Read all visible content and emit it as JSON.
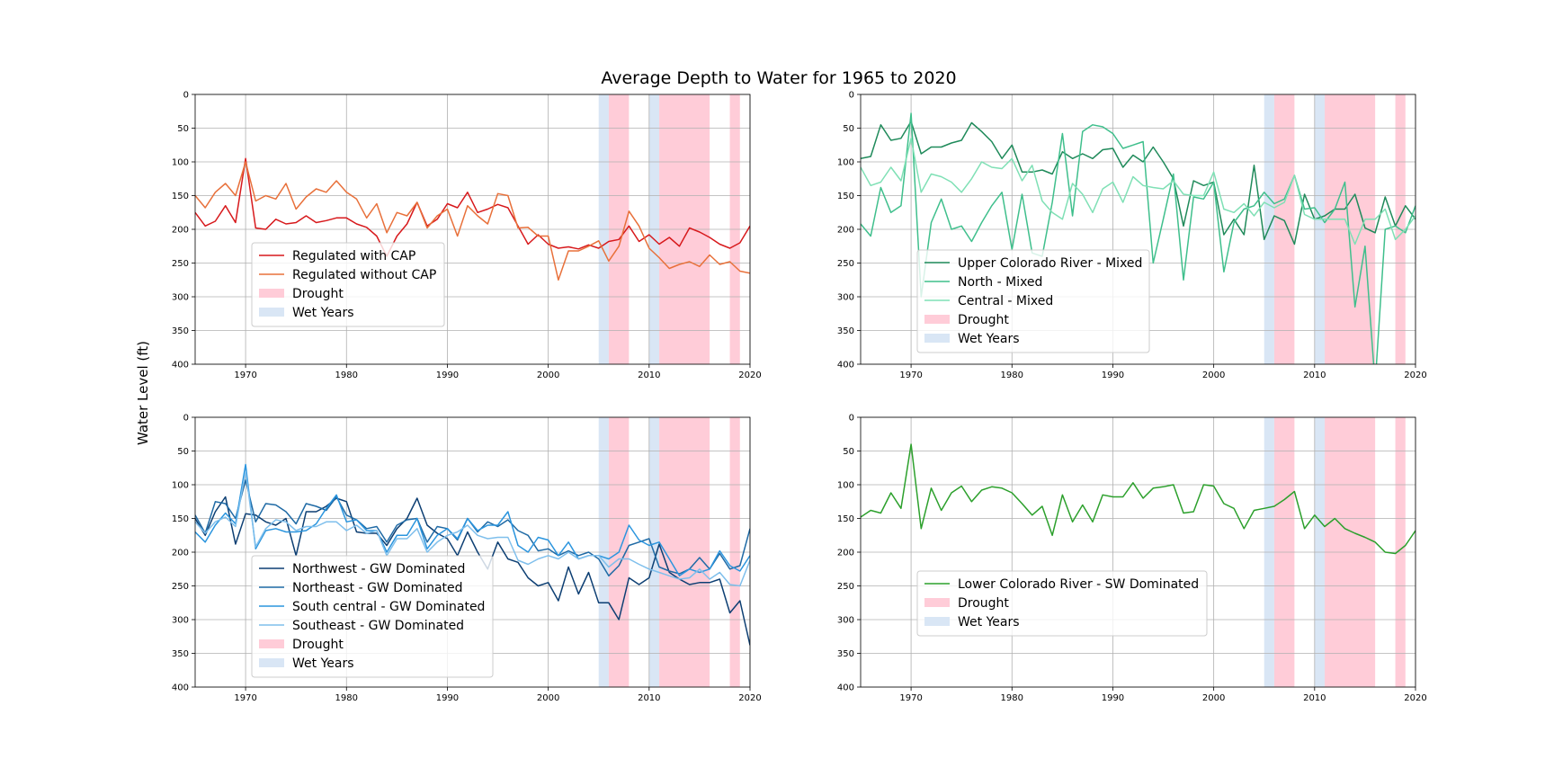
{
  "figure": {
    "title": "Average Depth to Water for 1965 to 2020",
    "ylabel": "Water Level (ft)"
  },
  "colors": {
    "drought": "#ffccd8",
    "wet": "#d9e6f5",
    "grid": "#b0b0b0"
  },
  "chart_data": [
    {
      "type": "line",
      "xlim": [
        1965,
        2020
      ],
      "ylim": [
        0,
        400
      ],
      "y_inverted": true,
      "grid": true,
      "xticks": [
        1970,
        1980,
        1990,
        2000,
        2010,
        2020
      ],
      "yticks": [
        0,
        50,
        100,
        150,
        200,
        250,
        300,
        350,
        400
      ],
      "legend_position": "center-left",
      "drought_spans": [
        [
          2006,
          2008
        ],
        [
          2011,
          2016
        ],
        [
          2018,
          2019
        ]
      ],
      "wet_spans": [
        [
          2005,
          2006
        ],
        [
          2010,
          2011
        ]
      ],
      "drought_label": "Drought",
      "wet_label": "Wet Years",
      "x": [
        1965,
        1966,
        1967,
        1968,
        1969,
        1970,
        1971,
        1972,
        1973,
        1974,
        1975,
        1976,
        1977,
        1978,
        1979,
        1980,
        1981,
        1982,
        1983,
        1984,
        1985,
        1986,
        1987,
        1988,
        1989,
        1990,
        1991,
        1992,
        1993,
        1994,
        1995,
        1996,
        1997,
        1998,
        1999,
        2000,
        2001,
        2002,
        2003,
        2004,
        2005,
        2006,
        2007,
        2008,
        2009,
        2010,
        2011,
        2012,
        2013,
        2014,
        2015,
        2016,
        2017,
        2018,
        2019,
        2020
      ],
      "series": [
        {
          "name": "Regulated with CAP",
          "color": "#d7191c",
          "values": [
            175,
            195,
            188,
            165,
            190,
            95,
            198,
            200,
            185,
            192,
            190,
            180,
            190,
            187,
            183,
            183,
            192,
            197,
            210,
            240,
            210,
            192,
            160,
            195,
            185,
            162,
            168,
            145,
            175,
            170,
            163,
            168,
            195,
            222,
            208,
            222,
            228,
            226,
            229,
            223,
            228,
            218,
            215,
            195,
            218,
            208,
            222,
            212,
            225,
            198,
            204,
            212,
            222,
            228,
            220,
            195
          ]
        },
        {
          "name": "Regulated without CAP",
          "color": "#e8703a",
          "values": [
            150,
            168,
            145,
            132,
            150,
            100,
            158,
            150,
            155,
            132,
            170,
            152,
            140,
            145,
            128,
            145,
            155,
            183,
            162,
            205,
            175,
            180,
            160,
            198,
            180,
            170,
            210,
            165,
            180,
            192,
            147,
            150,
            198,
            197,
            210,
            210,
            275,
            232,
            232,
            225,
            217,
            247,
            225,
            173,
            195,
            228,
            242,
            258,
            252,
            248,
            255,
            238,
            252,
            248,
            262,
            265
          ]
        }
      ]
    },
    {
      "type": "line",
      "xlim": [
        1965,
        2020
      ],
      "ylim": [
        0,
        400
      ],
      "y_inverted": true,
      "grid": true,
      "xticks": [
        1970,
        1980,
        1990,
        2000,
        2010,
        2020
      ],
      "yticks": [
        0,
        50,
        100,
        150,
        200,
        250,
        300,
        350,
        400
      ],
      "legend_position": "center-left",
      "drought_spans": [
        [
          2006,
          2008
        ],
        [
          2011,
          2016
        ],
        [
          2018,
          2019
        ]
      ],
      "wet_spans": [
        [
          2005,
          2006
        ],
        [
          2010,
          2011
        ]
      ],
      "drought_label": "Drought",
      "wet_label": "Wet Years",
      "x": [
        1965,
        1966,
        1967,
        1968,
        1969,
        1970,
        1971,
        1972,
        1973,
        1974,
        1975,
        1976,
        1977,
        1978,
        1979,
        1980,
        1981,
        1982,
        1983,
        1984,
        1985,
        1986,
        1987,
        1988,
        1989,
        1990,
        1991,
        1992,
        1993,
        1994,
        1995,
        1996,
        1997,
        1998,
        1999,
        2000,
        2001,
        2002,
        2003,
        2004,
        2005,
        2006,
        2007,
        2008,
        2009,
        2010,
        2011,
        2012,
        2013,
        2014,
        2015,
        2016,
        2017,
        2018,
        2019,
        2020
      ],
      "series": [
        {
          "name": "Upper Colorado River - Mixed",
          "color": "#1f8a5a",
          "values": [
            95,
            92,
            45,
            68,
            65,
            40,
            88,
            78,
            78,
            72,
            68,
            42,
            55,
            70,
            95,
            75,
            115,
            115,
            112,
            118,
            85,
            95,
            88,
            95,
            82,
            80,
            108,
            90,
            100,
            78,
            100,
            125,
            195,
            128,
            135,
            130,
            208,
            185,
            208,
            105,
            215,
            180,
            187,
            222,
            148,
            185,
            180,
            170,
            170,
            148,
            198,
            205,
            152,
            195,
            165,
            185
          ]
        },
        {
          "name": "North - Mixed",
          "color": "#3fbf8c",
          "values": [
            192,
            210,
            138,
            175,
            165,
            28,
            300,
            190,
            155,
            200,
            195,
            218,
            190,
            165,
            145,
            230,
            148,
            235,
            240,
            160,
            58,
            180,
            55,
            45,
            48,
            58,
            80,
            75,
            70,
            250,
            185,
            118,
            275,
            152,
            155,
            130,
            263,
            190,
            170,
            165,
            145,
            162,
            155,
            120,
            170,
            168,
            190,
            170,
            130,
            315,
            225,
            430,
            200,
            195,
            205,
            165
          ]
        },
        {
          "name": "Central - Mixed",
          "color": "#7fe0b5",
          "values": [
            108,
            135,
            130,
            108,
            128,
            65,
            145,
            118,
            122,
            130,
            145,
            125,
            100,
            108,
            110,
            95,
            128,
            105,
            158,
            175,
            185,
            132,
            148,
            175,
            140,
            130,
            160,
            122,
            135,
            138,
            140,
            128,
            148,
            150,
            150,
            115,
            170,
            175,
            162,
            180,
            160,
            168,
            160,
            120,
            178,
            185,
            185,
            185,
            185,
            222,
            185,
            185,
            170,
            215,
            200,
            180
          ]
        }
      ]
    },
    {
      "type": "line",
      "xlim": [
        1965,
        2020
      ],
      "ylim": [
        0,
        400
      ],
      "y_inverted": true,
      "grid": true,
      "xticks": [
        1970,
        1980,
        1990,
        2000,
        2010,
        2020
      ],
      "yticks": [
        0,
        50,
        100,
        150,
        200,
        250,
        300,
        350,
        400
      ],
      "legend_position": "center-left",
      "drought_spans": [
        [
          2006,
          2008
        ],
        [
          2011,
          2016
        ],
        [
          2018,
          2019
        ]
      ],
      "wet_spans": [
        [
          2005,
          2006
        ],
        [
          2010,
          2011
        ]
      ],
      "drought_label": "Drought",
      "wet_label": "Wet Years",
      "x": [
        1965,
        1966,
        1967,
        1968,
        1969,
        1970,
        1971,
        1972,
        1973,
        1974,
        1975,
        1976,
        1977,
        1978,
        1979,
        1980,
        1981,
        1982,
        1983,
        1984,
        1985,
        1986,
        1987,
        1988,
        1989,
        1990,
        1991,
        1992,
        1993,
        1994,
        1995,
        1996,
        1997,
        1998,
        1999,
        2000,
        2001,
        2002,
        2003,
        2004,
        2005,
        2006,
        2007,
        2008,
        2009,
        2010,
        2011,
        2012,
        2013,
        2014,
        2015,
        2016,
        2017,
        2018,
        2019,
        2020
      ],
      "series": [
        {
          "name": "Northwest - GW Dominated",
          "color": "#0d3f73",
          "values": [
            150,
            175,
            140,
            118,
            188,
            143,
            145,
            155,
            160,
            150,
            205,
            140,
            140,
            132,
            120,
            125,
            170,
            172,
            172,
            190,
            165,
            150,
            120,
            160,
            172,
            180,
            205,
            170,
            200,
            225,
            185,
            210,
            215,
            238,
            250,
            245,
            272,
            222,
            262,
            230,
            275,
            275,
            300,
            238,
            248,
            238,
            188,
            230,
            240,
            248,
            245,
            245,
            240,
            290,
            272,
            338
          ]
        },
        {
          "name": "Northeast - GW Dominated",
          "color": "#1f6aa5",
          "values": [
            145,
            172,
            125,
            128,
            150,
            93,
            155,
            128,
            130,
            140,
            158,
            128,
            132,
            138,
            118,
            145,
            152,
            165,
            162,
            185,
            160,
            152,
            150,
            185,
            162,
            165,
            182,
            150,
            170,
            155,
            162,
            152,
            168,
            175,
            198,
            195,
            205,
            198,
            205,
            200,
            210,
            235,
            220,
            190,
            185,
            180,
            222,
            228,
            232,
            225,
            208,
            225,
            202,
            225,
            220,
            165
          ]
        },
        {
          "name": "South central - GW Dominated",
          "color": "#2b95de",
          "values": [
            170,
            185,
            160,
            142,
            158,
            70,
            195,
            168,
            165,
            170,
            170,
            168,
            158,
            135,
            115,
            155,
            152,
            168,
            168,
            200,
            175,
            175,
            150,
            195,
            175,
            165,
            180,
            150,
            168,
            160,
            160,
            140,
            190,
            200,
            178,
            182,
            205,
            185,
            210,
            205,
            205,
            210,
            200,
            160,
            182,
            190,
            185,
            210,
            235,
            225,
            230,
            225,
            198,
            220,
            228,
            205
          ]
        },
        {
          "name": "Southeast - GW Dominated",
          "color": "#7fbfec",
          "values": [
            155,
            172,
            155,
            148,
            162,
            80,
            192,
            165,
            152,
            155,
            168,
            162,
            162,
            155,
            155,
            168,
            160,
            172,
            168,
            205,
            180,
            180,
            165,
            200,
            185,
            175,
            170,
            160,
            175,
            180,
            178,
            178,
            212,
            218,
            210,
            205,
            210,
            200,
            210,
            205,
            205,
            222,
            210,
            210,
            218,
            225,
            230,
            235,
            240,
            238,
            225,
            240,
            230,
            248,
            250,
            212
          ]
        }
      ]
    },
    {
      "type": "line",
      "xlim": [
        1965,
        2020
      ],
      "ylim": [
        0,
        400
      ],
      "y_inverted": true,
      "grid": true,
      "xticks": [
        1970,
        1980,
        1990,
        2000,
        2010,
        2020
      ],
      "yticks": [
        0,
        50,
        100,
        150,
        200,
        250,
        300,
        350,
        400
      ],
      "legend_position": "center-left",
      "drought_spans": [
        [
          2006,
          2008
        ],
        [
          2011,
          2016
        ],
        [
          2018,
          2019
        ]
      ],
      "wet_spans": [
        [
          2005,
          2006
        ],
        [
          2010,
          2011
        ]
      ],
      "drought_label": "Drought",
      "wet_label": "Wet Years",
      "x": [
        1965,
        1966,
        1967,
        1968,
        1969,
        1970,
        1971,
        1972,
        1973,
        1974,
        1975,
        1976,
        1977,
        1978,
        1979,
        1980,
        1981,
        1982,
        1983,
        1984,
        1985,
        1986,
        1987,
        1988,
        1989,
        1990,
        1991,
        1992,
        1993,
        1994,
        1995,
        1996,
        1997,
        1998,
        1999,
        2000,
        2001,
        2002,
        2003,
        2004,
        2005,
        2006,
        2007,
        2008,
        2009,
        2010,
        2011,
        2012,
        2013,
        2014,
        2015,
        2016,
        2017,
        2018,
        2019,
        2020
      ],
      "series": [
        {
          "name": "Lower Colorado River - SW Dominated",
          "color": "#2ca02c",
          "values": [
            148,
            138,
            142,
            112,
            135,
            40,
            165,
            105,
            138,
            112,
            102,
            125,
            108,
            103,
            105,
            112,
            128,
            145,
            132,
            175,
            115,
            155,
            130,
            155,
            115,
            118,
            118,
            97,
            120,
            105,
            103,
            100,
            142,
            140,
            100,
            102,
            128,
            135,
            165,
            138,
            135,
            132,
            122,
            110,
            165,
            145,
            162,
            150,
            165,
            172,
            178,
            185,
            200,
            202,
            190,
            168
          ]
        }
      ]
    }
  ]
}
